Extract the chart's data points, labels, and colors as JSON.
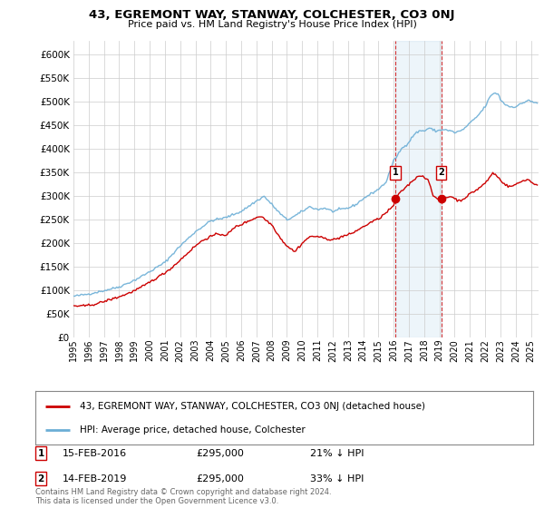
{
  "title": "43, EGREMONT WAY, STANWAY, COLCHESTER, CO3 0NJ",
  "subtitle": "Price paid vs. HM Land Registry's House Price Index (HPI)",
  "ytick_values": [
    0,
    50000,
    100000,
    150000,
    200000,
    250000,
    300000,
    350000,
    400000,
    450000,
    500000,
    550000,
    600000
  ],
  "ylim": [
    0,
    630000
  ],
  "xlim_start": 1995.0,
  "xlim_end": 2025.5,
  "hpi_color": "#6baed6",
  "price_color": "#cc0000",
  "marker1_x": 2016.12,
  "marker1_y": 295000,
  "marker2_x": 2019.12,
  "marker2_y": 295000,
  "vline1_x": 2016.12,
  "vline2_x": 2019.12,
  "footer_text": "Contains HM Land Registry data © Crown copyright and database right 2024.\nThis data is licensed under the Open Government Licence v3.0.",
  "legend_label_red": "43, EGREMONT WAY, STANWAY, COLCHESTER, CO3 0NJ (detached house)",
  "legend_label_blue": "HPI: Average price, detached house, Colchester",
  "note1_label": "1",
  "note1_date": "15-FEB-2016",
  "note1_price": "£295,000",
  "note1_hpi": "21% ↓ HPI",
  "note2_label": "2",
  "note2_date": "14-FEB-2019",
  "note2_price": "£295,000",
  "note2_hpi": "33% ↓ HPI",
  "background_color": "#ffffff",
  "grid_color": "#cccccc"
}
